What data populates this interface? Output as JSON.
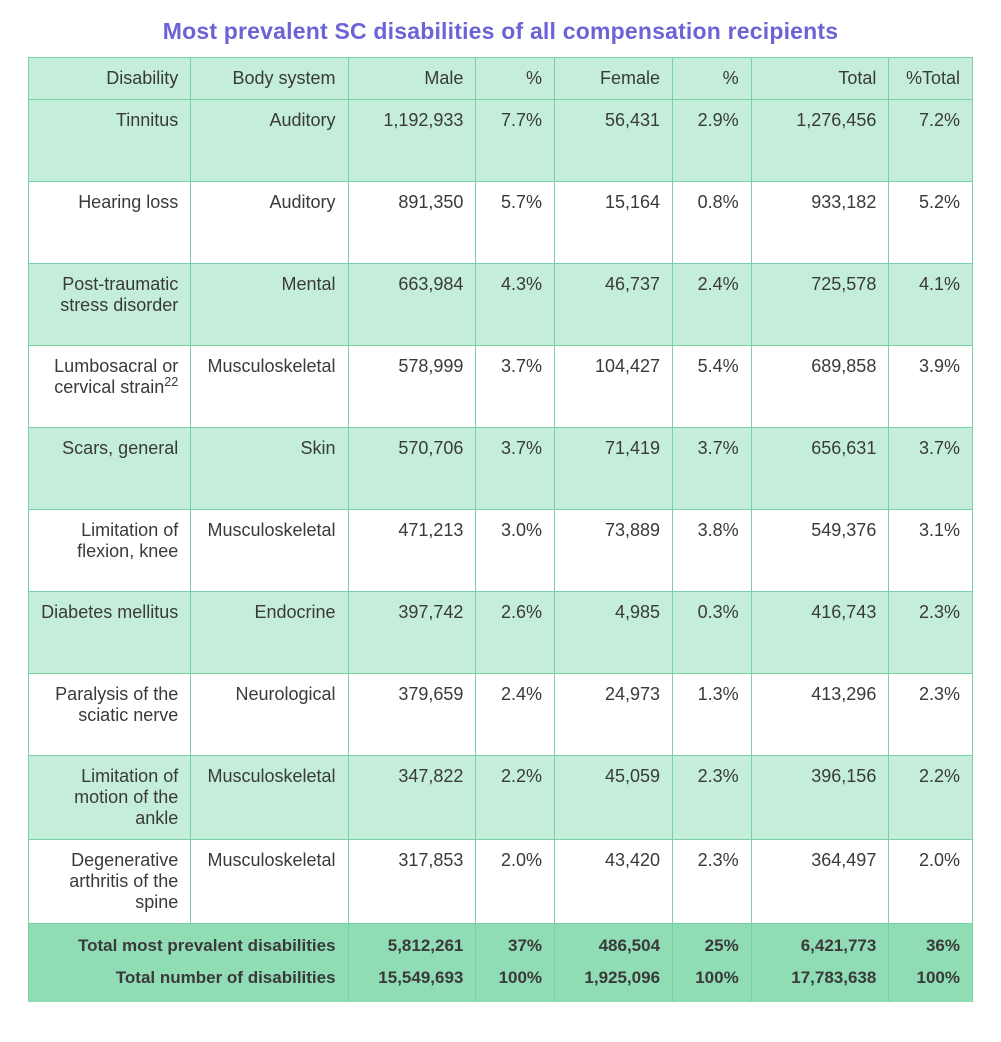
{
  "title": "Most prevalent SC disabilities of all compensation recipients",
  "title_color": "#6b63d6",
  "table": {
    "border_color": "#79cfa6",
    "header_bg": "#c4eed9",
    "row_alt_bg": "#c4eed9",
    "row_bg": "#ffffff",
    "footer_bg": "#8fdcb5",
    "text_color": "#3a3a3a",
    "font_size_pt": 13,
    "columns": [
      {
        "key": "disability",
        "label": "Disability",
        "align": "right"
      },
      {
        "key": "body",
        "label": "Body system",
        "align": "right"
      },
      {
        "key": "male",
        "label": "Male",
        "align": "right"
      },
      {
        "key": "male_pct",
        "label": "%",
        "align": "right"
      },
      {
        "key": "female",
        "label": "Female",
        "align": "right"
      },
      {
        "key": "female_pct",
        "label": "%",
        "align": "right"
      },
      {
        "key": "total",
        "label": "Total",
        "align": "right"
      },
      {
        "key": "total_pct",
        "label": "%Total",
        "align": "right"
      }
    ],
    "rows": [
      {
        "disability": "Tinnitus",
        "body": "Auditory",
        "male": "1,192,933",
        "male_pct": "7.7%",
        "female": "56,431",
        "female_pct": "2.9%",
        "total": "1,276,456",
        "total_pct": "7.2%"
      },
      {
        "disability": "Hearing loss",
        "body": "Auditory",
        "male": "891,350",
        "male_pct": "5.7%",
        "female": "15,164",
        "female_pct": "0.8%",
        "total": "933,182",
        "total_pct": "5.2%"
      },
      {
        "disability": "Post-traumatic stress disorder",
        "body": "Mental",
        "male": "663,984",
        "male_pct": "4.3%",
        "female": "46,737",
        "female_pct": "2.4%",
        "total": "725,578",
        "total_pct": "4.1%"
      },
      {
        "disability": "Lumbosacral or cervical strain",
        "disability_sup": "22",
        "body": "Musculoskeletal",
        "male": "578,999",
        "male_pct": "3.7%",
        "female": "104,427",
        "female_pct": "5.4%",
        "total": "689,858",
        "total_pct": "3.9%"
      },
      {
        "disability": "Scars, general",
        "body": "Skin",
        "male": "570,706",
        "male_pct": "3.7%",
        "female": "71,419",
        "female_pct": "3.7%",
        "total": "656,631",
        "total_pct": "3.7%"
      },
      {
        "disability": "Limitation of flexion, knee",
        "body": "Musculoskeletal",
        "male": "471,213",
        "male_pct": "3.0%",
        "female": "73,889",
        "female_pct": "3.8%",
        "total": "549,376",
        "total_pct": "3.1%"
      },
      {
        "disability": "Diabetes mellitus",
        "body": "Endocrine",
        "male": "397,742",
        "male_pct": "2.6%",
        "female": "4,985",
        "female_pct": "0.3%",
        "total": "416,743",
        "total_pct": "2.3%"
      },
      {
        "disability": "Paralysis of the sciatic nerve",
        "body": "Neurological",
        "male": "379,659",
        "male_pct": "2.4%",
        "female": "24,973",
        "female_pct": "1.3%",
        "total": "413,296",
        "total_pct": "2.3%"
      },
      {
        "disability": "Limitation of motion of the ankle",
        "body": "Musculoskeletal",
        "male": "347,822",
        "male_pct": "2.2%",
        "female": "45,059",
        "female_pct": "2.3%",
        "total": "396,156",
        "total_pct": "2.2%"
      },
      {
        "disability": "Degenerative arthritis of the spine",
        "body": "Musculoskeletal",
        "male": "317,853",
        "male_pct": "2.0%",
        "female": "43,420",
        "female_pct": "2.3%",
        "total": "364,497",
        "total_pct": "2.0%"
      }
    ],
    "footer": [
      {
        "label": "Total most prevalent disabilities",
        "male": "5,812,261",
        "male_pct": "37%",
        "female": "486,504",
        "female_pct": "25%",
        "total": "6,421,773",
        "total_pct": "36%"
      },
      {
        "label": "Total number of disabilities",
        "male": "15,549,693",
        "male_pct": "100%",
        "female": "1,925,096",
        "female_pct": "100%",
        "total": "17,783,638",
        "total_pct": "100%"
      }
    ]
  }
}
